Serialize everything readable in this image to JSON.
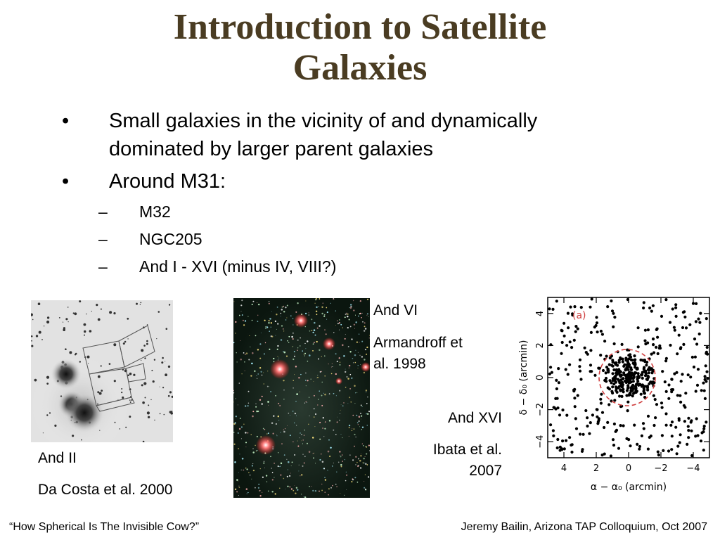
{
  "title": {
    "line1": "Introduction to Satellite",
    "line2": "Galaxies"
  },
  "bullets": [
    {
      "marker": "•",
      "text": "Small galaxies in the vicinity of and dynamically dominated by larger parent galaxies"
    },
    {
      "marker": "•",
      "text": "Around M31:"
    }
  ],
  "subbullets": [
    {
      "marker": "–",
      "text": "M32"
    },
    {
      "marker": "–",
      "text": "NGC205"
    },
    {
      "marker": "–",
      "text": "And I - XVI (minus IV, VIII?)"
    }
  ],
  "figures": {
    "and2": {
      "name": "And II",
      "credit": "Da Costa et al. 2000"
    },
    "and6": {
      "name": "And VI",
      "credit_line1": "Armandroff et",
      "credit_line2": "al. 1998"
    },
    "and16": {
      "name": "And XVI",
      "credit_line1": "Ibata et al.",
      "credit_line2": "2007",
      "plot_label": "(a)",
      "xlabel": "α − α₀ (arcmin)",
      "ylabel": "δ − δ₀ (arcmin)",
      "xticks": [
        "4",
        "2",
        "0",
        "−2",
        "−4"
      ],
      "yticks": [
        "4",
        "2",
        "0",
        "−2",
        "−4"
      ]
    }
  },
  "footer": {
    "left": "“How Spherical Is The Invisible Cow?”",
    "right": "Jeremy Bailin, Arizona TAP Colloquium, Oct 2007"
  }
}
